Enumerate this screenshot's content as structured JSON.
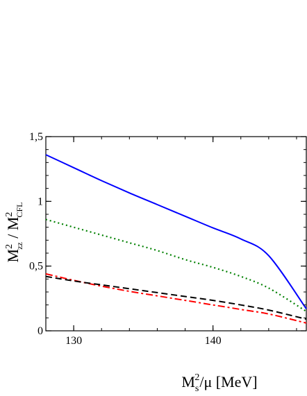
{
  "chart_data": {
    "type": "line",
    "title": "",
    "xlabel": {
      "base": "M",
      "sub": "s",
      "sup": "2",
      "rest": "/μ [MeV]"
    },
    "ylabel": {
      "num_base": "M",
      "num_sup": "2",
      "num_sub": "zz",
      "sep": " / ",
      "den_base": "M",
      "den_sup": "2",
      "den_sub": "CFL"
    },
    "xlim": [
      128,
      146.7
    ],
    "ylim": [
      0,
      1.5
    ],
    "x_ticks": [
      130,
      140
    ],
    "y_ticks": [
      0,
      0.5,
      1,
      1.5
    ],
    "x_tick_labels": [
      "130",
      "140"
    ],
    "y_tick_labels": [
      "0",
      "0,5",
      "1",
      "1,5"
    ],
    "grid": false,
    "legend": "none",
    "series": [
      {
        "color": "#0000ff",
        "style": "solid",
        "x": [
          128,
          130,
          132,
          134,
          136,
          138,
          140,
          142,
          144,
          146.7
        ],
        "y": [
          1.36,
          1.26,
          1.16,
          1.065,
          0.975,
          0.885,
          0.795,
          0.71,
          0.58,
          0.17
        ]
      },
      {
        "color": "#008000",
        "style": "dotted",
        "x": [
          128,
          130,
          132,
          134,
          136,
          138,
          140,
          142,
          144,
          146.7
        ],
        "y": [
          0.86,
          0.8,
          0.74,
          0.68,
          0.62,
          0.55,
          0.49,
          0.42,
          0.33,
          0.15
        ]
      },
      {
        "color": "#ff0000",
        "style": "dashdot",
        "x": [
          128,
          130,
          132,
          134,
          136,
          138,
          140,
          142,
          144,
          146.7
        ],
        "y": [
          0.44,
          0.39,
          0.345,
          0.305,
          0.27,
          0.235,
          0.2,
          0.165,
          0.13,
          0.06
        ]
      },
      {
        "color": "#000000",
        "style": "dashed",
        "x": [
          128,
          130,
          132,
          134,
          136,
          138,
          140,
          142,
          144,
          146.7
        ],
        "y": [
          0.42,
          0.385,
          0.355,
          0.325,
          0.295,
          0.265,
          0.235,
          0.2,
          0.16,
          0.09
        ]
      }
    ]
  }
}
